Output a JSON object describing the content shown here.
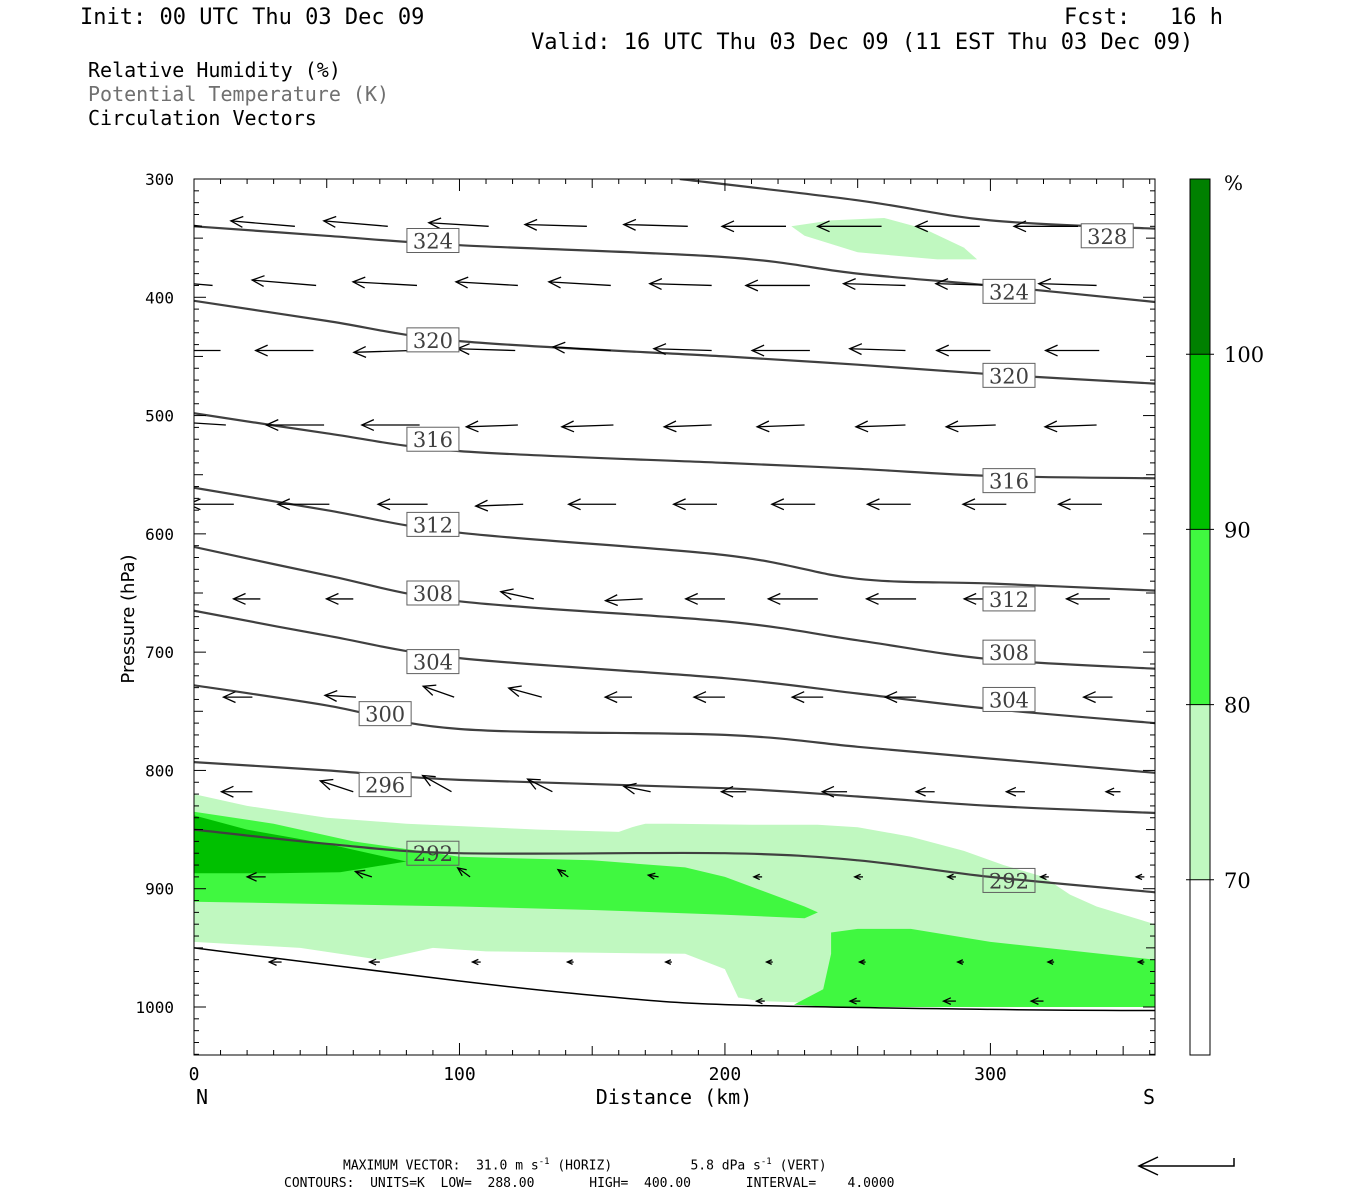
{
  "header": {
    "init": "Init: 00 UTC Thu 03 Dec 09",
    "fcst": "Fcst:   16 h",
    "valid": "Valid: 16 UTC Thu 03 Dec 09 (11 EST Thu 03 Dec 09)"
  },
  "legend_text": {
    "rh": "Relative Humidity (%)",
    "theta": "Potential Temperature (K)",
    "vectors": "Circulation Vectors"
  },
  "footer": {
    "max_vector_label": "MAXIMUM VECTOR:",
    "max_vector_horiz": "31.0 m s",
    "horiz_unit": "(HORIZ)",
    "max_vector_vert": "5.8 dPa s",
    "vert_unit": "(VERT)",
    "exponent": "-1",
    "contours": "CONTOURS:  UNITS=K  LOW=  288.00       HIGH=  400.00       INTERVAL=    4.0000"
  },
  "chart_data": {
    "type": "cross-section",
    "xlabel": "Distance (km)",
    "ylabel": "Pressure (hPa)",
    "xlim": [
      0,
      362
    ],
    "ylim": [
      1040,
      300
    ],
    "x_ticks": [
      0,
      100,
      200,
      300
    ],
    "y_ticks": [
      300,
      400,
      500,
      600,
      700,
      800,
      900,
      1000
    ],
    "x_end_labels": {
      "left": "N",
      "right": "S"
    },
    "colorbar": {
      "unit": "%",
      "levels": [
        70,
        80,
        90,
        100
      ],
      "colors": [
        "#ffffff",
        "#c0f8c0",
        "#40f840",
        "#00c000",
        "#008000"
      ]
    },
    "theta_contours": [
      {
        "value": 292,
        "points": [
          [
            0,
            850
          ],
          [
            50,
            862
          ],
          [
            100,
            870
          ],
          [
            200,
            870
          ],
          [
            250,
            876
          ],
          [
            300,
            890
          ],
          [
            362,
            903
          ]
        ],
        "labels": [
          [
            90,
            870
          ],
          [
            307,
            893
          ]
        ]
      },
      {
        "value": 296,
        "points": [
          [
            0,
            793
          ],
          [
            50,
            800
          ],
          [
            100,
            808
          ],
          [
            200,
            815
          ],
          [
            250,
            822
          ],
          [
            300,
            830
          ],
          [
            362,
            836
          ]
        ],
        "labels": [
          [
            72,
            812
          ]
        ]
      },
      {
        "value": 300,
        "points": [
          [
            0,
            728
          ],
          [
            50,
            745
          ],
          [
            100,
            765
          ],
          [
            200,
            770
          ],
          [
            250,
            780
          ],
          [
            300,
            790
          ],
          [
            362,
            802
          ]
        ],
        "labels": [
          [
            72,
            752
          ]
        ]
      },
      {
        "value": 304,
        "points": [
          [
            0,
            665
          ],
          [
            50,
            686
          ],
          [
            100,
            705
          ],
          [
            200,
            722
          ],
          [
            250,
            735
          ],
          [
            300,
            748
          ],
          [
            362,
            760
          ]
        ],
        "labels": [
          [
            90,
            708
          ],
          [
            307,
            740
          ]
        ]
      },
      {
        "value": 308,
        "points": [
          [
            0,
            611
          ],
          [
            50,
            635
          ],
          [
            100,
            657
          ],
          [
            200,
            674
          ],
          [
            250,
            690
          ],
          [
            300,
            706
          ],
          [
            362,
            714
          ]
        ],
        "labels": [
          [
            90,
            650
          ],
          [
            307,
            700
          ]
        ]
      },
      {
        "value": 312,
        "points": [
          [
            0,
            561
          ],
          [
            50,
            580
          ],
          [
            100,
            599
          ],
          [
            200,
            618
          ],
          [
            250,
            638
          ],
          [
            300,
            642
          ],
          [
            362,
            648
          ]
        ],
        "labels": [
          [
            90,
            592
          ],
          [
            307,
            655
          ]
        ]
      },
      {
        "value": 316,
        "points": [
          [
            0,
            498
          ],
          [
            50,
            515
          ],
          [
            100,
            530
          ],
          [
            200,
            540
          ],
          [
            250,
            545
          ],
          [
            300,
            551
          ],
          [
            362,
            553
          ]
        ],
        "labels": [
          [
            90,
            520
          ],
          [
            307,
            555
          ]
        ]
      },
      {
        "value": 320,
        "points": [
          [
            0,
            403
          ],
          [
            50,
            420
          ],
          [
            100,
            437
          ],
          [
            200,
            450
          ],
          [
            250,
            457
          ],
          [
            300,
            465
          ],
          [
            362,
            473
          ]
        ],
        "labels": [
          [
            90,
            436
          ],
          [
            307,
            466
          ]
        ]
      },
      {
        "value": 324,
        "points": [
          [
            0,
            340
          ],
          [
            50,
            348
          ],
          [
            100,
            356
          ],
          [
            200,
            366
          ],
          [
            250,
            380
          ],
          [
            300,
            390
          ],
          [
            362,
            404
          ]
        ],
        "labels": [
          [
            90,
            352
          ],
          [
            307,
            395
          ]
        ]
      },
      {
        "value": 328,
        "points": [
          [
            183,
            300
          ],
          [
            250,
            318
          ],
          [
            300,
            335
          ],
          [
            362,
            342
          ]
        ],
        "labels": [
          [
            344,
            348
          ]
        ]
      }
    ],
    "surface_line": [
      [
        0,
        950
      ],
      [
        100,
        978
      ],
      [
        150,
        990
      ],
      [
        200,
        998
      ],
      [
        300,
        1002
      ],
      [
        362,
        1003
      ]
    ],
    "rh_regions": [
      {
        "level": 70,
        "points": [
          [
            0,
            820
          ],
          [
            20,
            830
          ],
          [
            50,
            840
          ],
          [
            80,
            845
          ],
          [
            130,
            850
          ],
          [
            160,
            852
          ],
          [
            165,
            848
          ],
          [
            170,
            845
          ],
          [
            180,
            845
          ],
          [
            210,
            846
          ],
          [
            235,
            846
          ],
          [
            250,
            848
          ],
          [
            270,
            856
          ],
          [
            290,
            868
          ],
          [
            305,
            880
          ],
          [
            320,
            890
          ],
          [
            330,
            905
          ],
          [
            340,
            915
          ],
          [
            362,
            930
          ],
          [
            362,
            1000
          ],
          [
            270,
            1000
          ],
          [
            240,
            997
          ],
          [
            213,
            995
          ],
          [
            205,
            992
          ],
          [
            200,
            968
          ],
          [
            185,
            955
          ],
          [
            110,
            953
          ],
          [
            90,
            950
          ],
          [
            70,
            960
          ],
          [
            40,
            950
          ],
          [
            0,
            945
          ]
        ]
      },
      {
        "level": 70,
        "points": [
          [
            225,
            340
          ],
          [
            240,
            335
          ],
          [
            260,
            333
          ],
          [
            275,
            342
          ],
          [
            290,
            358
          ],
          [
            295,
            368
          ],
          [
            280,
            368
          ],
          [
            250,
            362
          ],
          [
            230,
            348
          ]
        ]
      },
      {
        "level": 80,
        "points": [
          [
            0,
            835
          ],
          [
            30,
            845
          ],
          [
            60,
            860
          ],
          [
            100,
            873
          ],
          [
            150,
            876
          ],
          [
            185,
            882
          ],
          [
            200,
            890
          ],
          [
            230,
            915
          ],
          [
            235,
            920
          ],
          [
            230,
            925
          ],
          [
            200,
            922
          ],
          [
            150,
            918
          ],
          [
            100,
            915
          ],
          [
            50,
            913
          ],
          [
            0,
            911
          ]
        ]
      },
      {
        "level": 80,
        "points": [
          [
            240,
            937
          ],
          [
            250,
            934
          ],
          [
            270,
            934
          ],
          [
            300,
            945
          ],
          [
            362,
            960
          ],
          [
            362,
            1000
          ],
          [
            280,
            1000
          ],
          [
            240,
            1000
          ],
          [
            226,
            998
          ],
          [
            237,
            985
          ],
          [
            240,
            955
          ]
        ]
      },
      {
        "level": 90,
        "points": [
          [
            0,
            838
          ],
          [
            20,
            850
          ],
          [
            50,
            862
          ],
          [
            70,
            872
          ],
          [
            80,
            877
          ],
          [
            55,
            886
          ],
          [
            30,
            887
          ],
          [
            0,
            887
          ]
        ]
      }
    ],
    "vectors": [
      {
        "p": 340,
        "x": [
          3,
          38,
          73,
          111,
          148,
          186,
          223,
          259,
          296,
          333
        ],
        "u": [
          -31,
          -31,
          -31,
          -29,
          -30,
          -31,
          -31,
          -31,
          -31,
          -31
        ],
        "w": [
          0.4,
          0.3,
          0.3,
          0.2,
          0.1,
          0.1,
          0,
          0,
          0,
          0
        ]
      },
      {
        "p": 390,
        "x": [
          7,
          46,
          84,
          122,
          157,
          195,
          232,
          268,
          302,
          340
        ],
        "u": [
          -31,
          -31,
          -31,
          -30,
          -30,
          -30,
          -31,
          -30,
          -29,
          -28
        ],
        "w": [
          0.3,
          0.3,
          0.2,
          0.2,
          0.2,
          0.1,
          0,
          0.1,
          0.1,
          0.1
        ]
      },
      {
        "p": 445,
        "x": [
          10,
          45,
          82,
          121,
          157,
          195,
          232,
          268,
          300,
          341
        ],
        "u": [
          -27,
          -28,
          -28,
          -28,
          -28,
          -28,
          -28,
          -27,
          -26,
          -26
        ],
        "w": [
          0,
          0,
          -0.1,
          0.1,
          0.2,
          0.1,
          0,
          0.1,
          0,
          0
        ]
      },
      {
        "p": 508,
        "x": [
          12,
          49,
          85,
          122,
          158,
          195,
          230,
          268,
          302,
          340
        ],
        "u": [
          -27,
          -28,
          -28,
          -25,
          -25,
          -23,
          -23,
          -24,
          -24,
          -25
        ],
        "w": [
          0.2,
          0,
          0,
          -0.1,
          -0.1,
          -0.1,
          -0.1,
          -0.1,
          -0.1,
          -0.1
        ]
      },
      {
        "p": 575,
        "x": [
          15,
          51,
          88,
          124,
          159,
          197,
          234,
          270,
          306,
          342
        ],
        "u": [
          -22,
          -25,
          -24,
          -23,
          -23,
          -21,
          -21,
          -21,
          -21,
          -21
        ],
        "w": [
          0,
          0,
          0,
          -0.1,
          0,
          0,
          0,
          0,
          0,
          0
        ]
      },
      {
        "p": 655,
        "x": [
          25,
          60,
          98,
          128,
          169,
          200,
          235,
          272,
          308,
          345
        ],
        "u": [
          -13,
          -13,
          -15,
          -16,
          -18,
          -19,
          -24,
          -24,
          -23,
          -21
        ],
        "w": [
          0,
          0,
          0.4,
          0.4,
          -0.1,
          0,
          0,
          0,
          0,
          0
        ]
      },
      {
        "p": 738,
        "x": [
          22,
          61,
          98,
          131,
          165,
          200,
          237,
          272,
          309,
          346
        ],
        "u": [
          -14,
          -15,
          -15,
          -16,
          -13,
          -15,
          -15,
          -15,
          -14,
          -14
        ],
        "w": [
          0,
          0.1,
          0.6,
          0.5,
          0,
          0,
          0,
          0,
          0,
          0
        ]
      },
      {
        "p": 818,
        "x": [
          22,
          60,
          97,
          135,
          172,
          208,
          246,
          279,
          313,
          349
        ],
        "u": [
          -15,
          -16,
          -14,
          -12,
          -13,
          -12,
          -12,
          -9,
          -9,
          -7
        ],
        "w": [
          0,
          0.6,
          0.9,
          0.7,
          0.3,
          0,
          0,
          0,
          0,
          0
        ]
      },
      {
        "p": 890,
        "x": [
          27,
          67,
          104,
          141,
          175,
          214,
          252,
          287,
          322,
          358
        ],
        "u": [
          -9,
          -8,
          -6,
          -5,
          -5,
          -4,
          -4,
          -4,
          -4,
          -4
        ],
        "w": [
          0,
          0.3,
          0.5,
          0.4,
          0.1,
          0,
          0,
          0,
          0,
          0
        ]
      },
      {
        "p": 962,
        "x": [
          33,
          70,
          108,
          143,
          180,
          218,
          253,
          290,
          324,
          358
        ],
        "u": [
          -6,
          -5,
          -4,
          -3,
          -3,
          -3,
          -3,
          -3,
          -3,
          -3
        ],
        "w": [
          0,
          0,
          0,
          0,
          0,
          0,
          0,
          0,
          0,
          0
        ]
      },
      {
        "p": 995,
        "x": [
          215,
          251,
          287,
          320
        ],
        "u": [
          -4,
          -5,
          -6,
          -6
        ],
        "w": [
          0,
          0,
          0,
          0
        ]
      }
    ]
  }
}
